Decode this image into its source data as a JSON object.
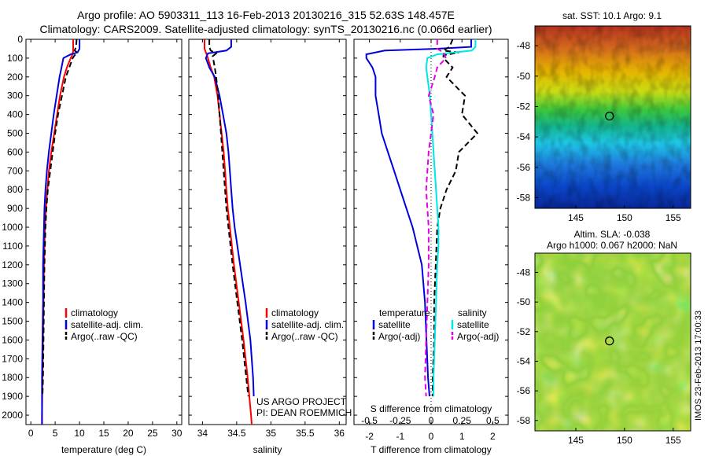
{
  "header": {
    "line1": "Argo profile: AO 5903311_113 16-Feb-2013 20130216_315 52.63S 148.457E",
    "line2": "Climatology: CARS2009. Satellite-adjusted climatology: synTS_20130216.nc (0.066d earlier)"
  },
  "colors": {
    "climatology": "#ff0000",
    "satellite": "#0000dd",
    "argo": "#000000",
    "salinity_sat": "#00e6e6",
    "salinity_argo": "#e600e6"
  },
  "chart_data": [
    {
      "type": "line",
      "id": "temperature",
      "xlabel": "temperature (deg C)",
      "xlim": [
        -1,
        31
      ],
      "xticks": [
        0,
        5,
        10,
        15,
        20,
        25,
        30
      ],
      "ylim": [
        2050,
        0
      ],
      "yticks": [
        0,
        100,
        200,
        300,
        400,
        500,
        600,
        700,
        800,
        900,
        1000,
        1100,
        1200,
        1300,
        1400,
        1500,
        1600,
        1700,
        1800,
        1900,
        2000
      ],
      "legend": [
        "climatology",
        "satellite-adj. clim.",
        "Argo(..raw -QC)"
      ],
      "series": [
        {
          "name": "climatology",
          "y": [
            0,
            60,
            80,
            100,
            150,
            200,
            300,
            400,
            500,
            600,
            700,
            800,
            900,
            1000,
            1200,
            1400,
            1600,
            1800,
            2000,
            2050
          ],
          "x": [
            8.7,
            8.7,
            8.6,
            8.2,
            7.4,
            6.8,
            6.0,
            5.4,
            4.8,
            4.2,
            3.7,
            3.4,
            3.1,
            2.9,
            2.7,
            2.6,
            2.5,
            2.4,
            2.3,
            2.3
          ]
        },
        {
          "name": "satellite-adj. clim.",
          "y": [
            0,
            50,
            70,
            80,
            100,
            150,
            200,
            300,
            400,
            500,
            600,
            700,
            800,
            900,
            1000,
            1200,
            1400,
            1600,
            1800,
            2000,
            2050
          ],
          "x": [
            10.0,
            10.0,
            9.6,
            8.2,
            6.7,
            6.3,
            5.9,
            5.3,
            4.7,
            4.2,
            3.7,
            3.3,
            3.0,
            2.8,
            2.7,
            2.5,
            2.5,
            2.4,
            2.3,
            2.3,
            2.3
          ]
        },
        {
          "name": "Argo(..raw -QC)",
          "y": [
            0,
            40,
            60,
            70,
            85,
            100,
            150,
            200,
            300,
            400,
            500,
            600,
            700,
            800,
            900,
            1000,
            1200,
            1400,
            1600,
            1800,
            1900
          ],
          "x": [
            9.4,
            9.3,
            9.0,
            9.5,
            9.0,
            8.6,
            7.9,
            7.2,
            6.4,
            5.6,
            5.0,
            4.5,
            4.0,
            3.5,
            3.2,
            3.0,
            2.8,
            2.7,
            2.6,
            2.5,
            2.4
          ]
        }
      ]
    },
    {
      "type": "line",
      "id": "salinity",
      "xlabel": "salinity",
      "xlim": [
        33.8,
        36.1
      ],
      "xticks": [
        34,
        34.5,
        35,
        35.5,
        36
      ],
      "ylim": [
        2050,
        0
      ],
      "legend": [
        "climatology",
        "satellite-adj. clim.",
        "Argo(..raw -QC)"
      ],
      "annotation": [
        "US ARGO PROJECT",
        "PI: DEAN ROEMMICH"
      ],
      "series": [
        {
          "name": "climatology",
          "y": [
            0,
            50,
            70,
            100,
            150,
            200,
            300,
            400,
            500,
            600,
            700,
            800,
            900,
            1000,
            1200,
            1400,
            1600,
            1800,
            2000,
            2050
          ],
          "x": [
            34.03,
            34.03,
            34.05,
            34.08,
            34.12,
            34.17,
            34.22,
            34.25,
            34.28,
            34.31,
            34.33,
            34.35,
            34.37,
            34.4,
            34.46,
            34.53,
            34.6,
            34.66,
            34.71,
            34.72
          ]
        },
        {
          "name": "satellite-adj. clim.",
          "y": [
            0,
            40,
            60,
            75,
            100,
            150,
            200,
            300,
            400,
            500,
            600,
            700,
            800,
            900,
            1000,
            1200,
            1400,
            1600,
            1800,
            1900
          ],
          "x": [
            34.42,
            34.42,
            34.35,
            34.08,
            34.05,
            34.1,
            34.18,
            34.25,
            34.3,
            34.35,
            34.38,
            34.4,
            34.42,
            34.44,
            34.47,
            34.55,
            34.63,
            34.7,
            34.74,
            34.75
          ]
        },
        {
          "name": "Argo(..raw -QC)",
          "y": [
            0,
            40,
            60,
            75,
            90,
            110,
            150,
            200,
            300,
            400,
            500,
            600,
            700,
            800,
            900,
            1000,
            1200,
            1400,
            1600,
            1800,
            1900
          ],
          "x": [
            34.1,
            34.1,
            34.12,
            34.2,
            34.15,
            34.16,
            34.18,
            34.2,
            34.23,
            34.25,
            34.27,
            34.29,
            34.31,
            34.33,
            34.35,
            34.38,
            34.44,
            34.51,
            34.58,
            34.64,
            34.67
          ]
        }
      ]
    },
    {
      "type": "line",
      "id": "difference",
      "xlabel": "T difference from climatology",
      "secondary_xlabel": "S difference from climatology",
      "xlim": [
        -2.5,
        2.5
      ],
      "xticks": [
        -2,
        -1,
        0,
        1,
        2
      ],
      "secondary_xticks": [
        -0.5,
        -0.25,
        0,
        0.25,
        0.5
      ],
      "ylim": [
        2050,
        0
      ],
      "legend_headers": [
        "temperature",
        "salinity"
      ],
      "legend": [
        "satellite",
        "Argo(-adj)",
        "satellite",
        "Argo(-adj)"
      ],
      "series": [
        {
          "name": "satellite",
          "quantity": "temperature",
          "y": [
            0,
            40,
            50,
            60,
            80,
            100,
            150,
            200,
            300,
            400,
            500,
            600,
            700,
            800,
            900,
            1000,
            1200,
            1400,
            1600,
            1800,
            1900
          ],
          "x": [
            1.3,
            1.3,
            0.2,
            -1.5,
            -2.1,
            -2.1,
            -1.9,
            -1.8,
            -1.8,
            -1.7,
            -1.6,
            -1.4,
            -1.2,
            -1.0,
            -0.8,
            -0.6,
            -0.3,
            -0.2,
            -0.15,
            -0.1,
            -0.05
          ]
        },
        {
          "name": "Argo(-adj)",
          "quantity": "temperature",
          "y": [
            0,
            40,
            60,
            70,
            85,
            100,
            150,
            200,
            300,
            400,
            500,
            600,
            700,
            800,
            900,
            1000,
            1200,
            1400,
            1600,
            1800,
            1900
          ],
          "x": [
            0.7,
            0.6,
            0.4,
            0.9,
            0.4,
            0.4,
            0.7,
            0.5,
            1.1,
            1.0,
            1.5,
            0.9,
            0.8,
            0.5,
            0.3,
            0.2,
            0.15,
            0.1,
            0.1,
            0.05,
            0.05
          ]
        },
        {
          "name": "satellite",
          "quantity": "salinity",
          "y": [
            0,
            40,
            60,
            80,
            100,
            150,
            200,
            300,
            400,
            500,
            600,
            700,
            800,
            900,
            1000,
            1100,
            1200,
            1400,
            1600,
            1800,
            1900
          ],
          "x": [
            0.36,
            0.36,
            0.33,
            0.05,
            -0.03,
            -0.04,
            -0.03,
            -0.01,
            0.0,
            0.01,
            0.02,
            0.03,
            0.04,
            0.05,
            0.06,
            0.06,
            0.05,
            0.04,
            0.03,
            0.02,
            0.02
          ]
        },
        {
          "name": "Argo(-adj)",
          "quantity": "salinity",
          "y": [
            0,
            50,
            70,
            100,
            150,
            200,
            300,
            400,
            500,
            600,
            700,
            800,
            900,
            1000,
            1200,
            1400,
            1600,
            1800,
            1900
          ],
          "x": [
            0.05,
            0.05,
            0.1,
            0.12,
            0.05,
            0.03,
            -0.02,
            0.02,
            0.0,
            -0.02,
            -0.03,
            -0.04,
            -0.03,
            -0.02,
            -0.02,
            -0.03,
            -0.04,
            -0.05,
            -0.04
          ]
        }
      ]
    },
    {
      "type": "heatmap",
      "id": "sst-map",
      "title": "sat. SST: 10.1  Argo: 9.1",
      "xticks": [
        145,
        150,
        155
      ],
      "yticks": [
        -48,
        -50,
        -52,
        -54,
        -56,
        -58
      ],
      "xlim": [
        140.8,
        156.8
      ],
      "ylim": [
        -58.7,
        -46.7
      ],
      "marker": {
        "lon": 148.457,
        "lat": -52.63
      }
    },
    {
      "type": "heatmap",
      "id": "sla-map",
      "title": "Altim. SLA: -0.038",
      "subtitle": "Argo h1000: 0.067 h2000: NaN",
      "xticks": [
        145,
        150,
        155
      ],
      "yticks": [
        -48,
        -50,
        -52,
        -54,
        -56,
        -58
      ],
      "xlim": [
        140.8,
        156.8
      ],
      "ylim": [
        -58.7,
        -46.7
      ],
      "marker": {
        "lon": 148.457,
        "lat": -52.63
      }
    }
  ],
  "footer": {
    "stamp": "IMOS 23-Feb-2013 17:00:33"
  }
}
